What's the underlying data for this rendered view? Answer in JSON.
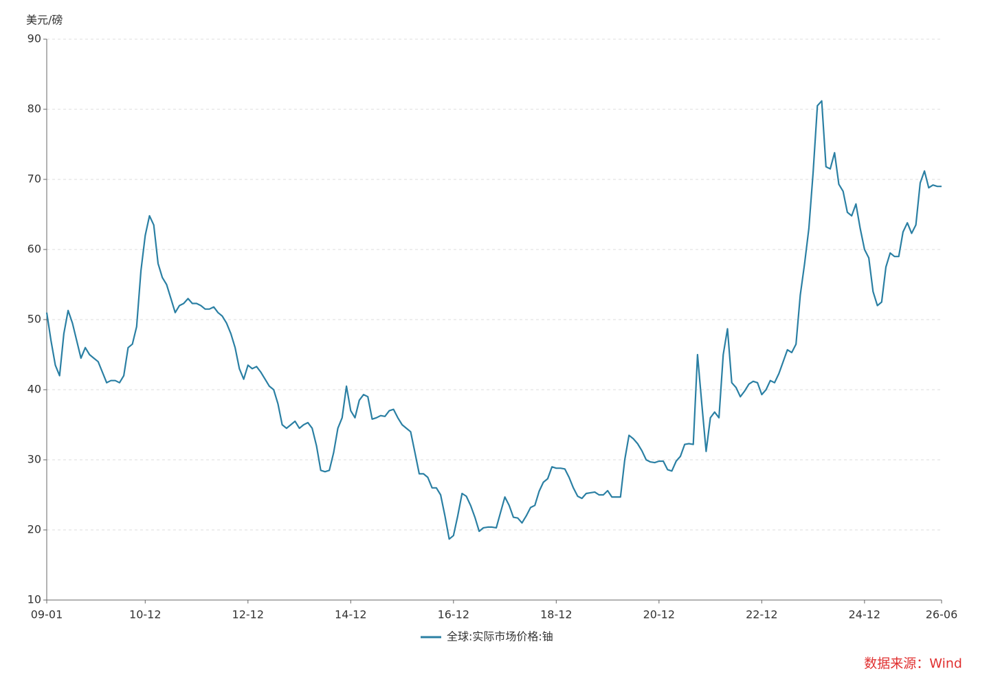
{
  "chart_data": {
    "type": "line",
    "y_label": "美元/磅",
    "source": "数据来源：Wind",
    "categories": [
      "09-01",
      null,
      null,
      null,
      null,
      null,
      null,
      null,
      null,
      null,
      null,
      null,
      null,
      null,
      null,
      null,
      null,
      null,
      null,
      null,
      null,
      null,
      null,
      "10-12",
      null,
      null,
      null,
      null,
      null,
      null,
      null,
      null,
      null,
      null,
      null,
      null,
      null,
      null,
      null,
      null,
      null,
      null,
      null,
      null,
      null,
      null,
      null,
      "12-12",
      null,
      null,
      null,
      null,
      null,
      null,
      null,
      null,
      null,
      null,
      null,
      null,
      null,
      null,
      null,
      null,
      null,
      null,
      null,
      null,
      null,
      null,
      null,
      "14-12",
      null,
      null,
      null,
      null,
      null,
      null,
      null,
      null,
      null,
      null,
      null,
      null,
      null,
      null,
      null,
      null,
      null,
      null,
      null,
      null,
      null,
      null,
      null,
      "16-12",
      null,
      null,
      null,
      null,
      null,
      null,
      null,
      null,
      null,
      null,
      null,
      null,
      null,
      null,
      null,
      null,
      null,
      null,
      null,
      null,
      null,
      null,
      null,
      "18-12",
      null,
      null,
      null,
      null,
      null,
      null,
      null,
      null,
      null,
      null,
      null,
      null,
      null,
      null,
      null,
      null,
      null,
      null,
      null,
      null,
      null,
      null,
      null,
      "20-12",
      null,
      null,
      null,
      null,
      null,
      null,
      null,
      null,
      null,
      null,
      null,
      null,
      null,
      null,
      null,
      null,
      null,
      null,
      null,
      null,
      null,
      null,
      null,
      "22-12",
      null,
      null,
      null,
      null,
      null,
      null,
      null,
      null,
      null,
      null,
      null,
      null,
      null,
      null,
      null,
      null,
      null,
      null,
      null,
      null,
      null,
      null,
      null,
      "24-12",
      null,
      null,
      null,
      null,
      null,
      null,
      null,
      null,
      null,
      null,
      null,
      null,
      null,
      null,
      null,
      null,
      null,
      "26-06"
    ],
    "series": [
      {
        "name": "全球:实际市场价格:铀",
        "color": "#2a7fa3",
        "values": [
          51,
          47,
          43.5,
          42,
          48,
          51.3,
          49.5,
          47,
          44.5,
          46,
          45,
          44.5,
          44,
          42.5,
          41,
          41.3,
          41.3,
          41,
          42,
          46,
          46.5,
          49,
          57,
          62,
          64.8,
          63.5,
          58,
          56,
          55,
          53,
          51,
          52,
          52.3,
          53,
          52.3,
          52.3,
          52,
          51.5,
          51.5,
          51.8,
          51,
          50.5,
          49.5,
          48,
          46,
          43,
          41.5,
          43.5,
          43,
          43.3,
          42.5,
          41.5,
          40.5,
          40,
          38,
          35,
          34.5,
          35,
          35.5,
          34.5,
          35,
          35.3,
          34.5,
          32,
          28.5,
          28.3,
          28.5,
          31,
          34.5,
          36,
          40.5,
          37,
          36,
          38.5,
          39.3,
          39,
          35.8,
          36,
          36.3,
          36.2,
          37,
          37.2,
          36,
          35,
          34.5,
          34,
          31,
          28,
          28,
          27.5,
          26,
          26,
          25,
          22,
          18.7,
          19.2,
          22,
          25.2,
          24.8,
          23.5,
          21.8,
          19.8,
          20.3,
          20.4,
          20.4,
          20.3,
          22.5,
          24.7,
          23.5,
          21.8,
          21.7,
          21,
          22,
          23.2,
          23.5,
          25.5,
          26.8,
          27.3,
          29,
          28.8,
          28.8,
          28.7,
          27.5,
          26,
          24.8,
          24.5,
          25.2,
          25.3,
          25.4,
          25,
          25,
          25.6,
          24.7,
          24.7,
          24.7,
          30,
          33.5,
          33,
          32.3,
          31.3,
          30,
          29.7,
          29.6,
          29.8,
          29.8,
          28.6,
          28.4,
          29.8,
          30.5,
          32.2,
          32.3,
          32.2,
          45,
          38,
          31.2,
          36,
          36.8,
          36,
          45,
          48.7,
          41,
          40.3,
          39,
          39.8,
          40.8,
          41.2,
          41,
          39.3,
          40,
          41.3,
          41,
          42.3,
          44,
          45.7,
          45.3,
          46.5,
          53.5,
          58,
          63,
          71,
          80.5,
          81.2,
          71.8,
          71.5,
          73.8,
          69.3,
          68.3,
          65.3,
          64.8,
          66.5,
          63,
          60,
          58.8,
          54,
          52,
          52.5,
          57.5,
          59.5,
          59,
          59,
          62.5,
          63.8,
          62.3,
          63.5,
          69.5,
          71.2,
          68.8,
          69.2,
          69,
          69
        ]
      }
    ],
    "ylim": [
      10,
      90
    ],
    "yticks": [
      10,
      20,
      30,
      40,
      50,
      60,
      70,
      80,
      90
    ],
    "grid": true
  }
}
